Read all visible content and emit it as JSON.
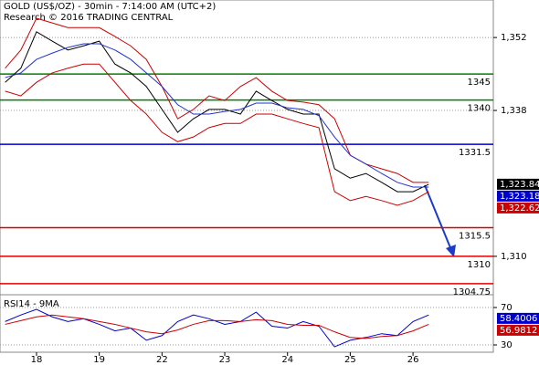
{
  "chart_data": [
    {
      "type": "line",
      "title": "GOLD (US$/OZ) - 30min - 7:14:00 AM (UTC+2)",
      "subtitle": "Research © 2016 TRADING CENTRAL",
      "x": [
        -0.5,
        -0.25,
        0,
        0.25,
        0.5,
        0.75,
        1,
        1.25,
        1.5,
        1.75,
        2,
        2.25,
        2.5,
        2.75,
        3,
        3.25,
        3.5,
        3.75,
        4,
        4.25,
        4.5,
        4.75,
        5,
        5.25,
        5.5,
        5.75,
        6,
        6.25
      ],
      "series": [
        {
          "color": "#000000",
          "values": [
            1343.4,
            1346.1,
            1353.1,
            1351.3,
            1349.6,
            1350.4,
            1351.3,
            1346.9,
            1345.2,
            1342.6,
            1338.2,
            1333.8,
            1336.4,
            1338.2,
            1338.2,
            1337.3,
            1341.7,
            1339.9,
            1338.2,
            1337.3,
            1337.3,
            1326.8,
            1325.0,
            1325.9,
            1324.2,
            1322.4,
            1322.4,
            1323.8
          ]
        },
        {
          "color": "#cc0000",
          "values": [
            1346.1,
            1349.6,
            1355.7,
            1354.8,
            1353.9,
            1353.9,
            1353.9,
            1352.2,
            1350.4,
            1347.8,
            1342.6,
            1336.4,
            1338.2,
            1340.8,
            1339.9,
            1342.6,
            1344.3,
            1341.7,
            1339.9,
            1339.6,
            1339.1,
            1336.4,
            1329.4,
            1327.7,
            1326.8,
            1325.9,
            1324.2,
            1324.2
          ]
        },
        {
          "color": "#cc0000",
          "values": [
            1341.7,
            1340.8,
            1343.4,
            1345.2,
            1346.1,
            1346.9,
            1346.9,
            1343.4,
            1339.9,
            1337.3,
            1333.8,
            1332.0,
            1332.9,
            1334.7,
            1335.5,
            1335.5,
            1337.3,
            1337.3,
            1336.4,
            1335.5,
            1334.7,
            1322.4,
            1320.7,
            1321.5,
            1320.7,
            1319.8,
            1320.7,
            1322.4
          ]
        },
        {
          "color": "#2233cc",
          "values": [
            1344.3,
            1345.2,
            1347.8,
            1349.0,
            1350.1,
            1350.8,
            1350.8,
            1349.6,
            1347.8,
            1345.2,
            1342.6,
            1339.1,
            1337.3,
            1337.3,
            1337.8,
            1338.2,
            1339.4,
            1339.4,
            1338.5,
            1338.2,
            1337.0,
            1332.9,
            1329.4,
            1327.7,
            1325.9,
            1324.2,
            1323.3,
            1323.3
          ]
        }
      ],
      "levels": [
        {
          "value": 1345,
          "color": "#008000"
        },
        {
          "value": 1340,
          "color": "#008000"
        },
        {
          "value": 1331.5,
          "color": "#0000cc"
        },
        {
          "value": 1315.5,
          "color": "#dd0000"
        },
        {
          "value": 1310,
          "color": "#dd0000"
        },
        {
          "value": 1304.75,
          "color": "#dd0000"
        }
      ],
      "price_tags": [
        {
          "value": 1323.84,
          "label": "1,323.84",
          "color": "#000000"
        },
        {
          "value": 1323.18,
          "label": "1,323.18",
          "color": "#0000cc"
        },
        {
          "value": 1322.62,
          "label": "1,322.62",
          "color": "#cc0000"
        }
      ],
      "xlim": [
        -0.582,
        7.28
      ],
      "xticks": [
        {
          "value": 0,
          "label": "18"
        },
        {
          "value": 1,
          "label": "19"
        },
        {
          "value": 2,
          "label": "22"
        },
        {
          "value": 3,
          "label": "23"
        },
        {
          "value": 4,
          "label": "24"
        },
        {
          "value": 5,
          "label": "25"
        },
        {
          "value": 6,
          "label": "26"
        }
      ],
      "ylim": [
        1302.8,
        1359.2
      ],
      "yticks": [
        {
          "value": 1352,
          "label": "1,352"
        },
        {
          "value": 1338,
          "label": "1,338"
        },
        {
          "value": 1310,
          "label": "1,310"
        }
      ],
      "grid": true
    },
    {
      "type": "line",
      "title": "RSI14 - 9MA",
      "x": [
        -0.5,
        -0.25,
        0,
        0.25,
        0.5,
        0.75,
        1,
        1.25,
        1.5,
        1.75,
        2,
        2.25,
        2.5,
        2.75,
        3,
        3.25,
        3.5,
        3.75,
        4,
        4.25,
        4.5,
        4.75,
        5,
        5.25,
        5.5,
        5.75,
        6,
        6.25
      ],
      "series": [
        {
          "color": "#0000cc",
          "values": [
            55,
            62,
            68,
            60,
            55,
            58,
            52,
            45,
            48,
            35,
            40,
            55,
            62,
            58,
            52,
            55,
            65,
            50,
            48,
            55,
            50,
            28,
            35,
            38,
            42,
            40,
            55,
            62
          ]
        },
        {
          "color": "#cc0000",
          "values": [
            52,
            56,
            60,
            62,
            60,
            58,
            55,
            52,
            48,
            44,
            42,
            46,
            52,
            56,
            56,
            55,
            57,
            56,
            52,
            51,
            51,
            44,
            38,
            37,
            39,
            40,
            45,
            52
          ]
        }
      ],
      "value_tags": [
        {
          "value": 58.4006,
          "color": "#0000cc"
        },
        {
          "value": 56.9812,
          "color": "#cc0000"
        }
      ],
      "xlim": [
        -0.582,
        7.28
      ],
      "ylim": [
        22.2,
        81.7
      ],
      "yticks": [
        70,
        30
      ],
      "grid": true
    }
  ]
}
